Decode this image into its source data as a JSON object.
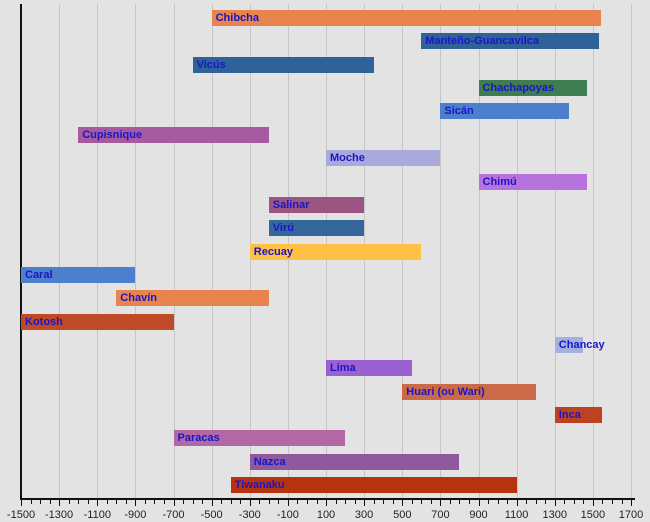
{
  "chart_data": {
    "type": "bar",
    "variant": "horizontal-timeline",
    "title": "",
    "xlabel": "",
    "ylabel": "",
    "legend": "none",
    "grid": "vertical-major",
    "x_axis": {
      "min": -1500,
      "max": 1700,
      "major_tick_step": 200,
      "minor_tick_step": 50,
      "tick_labels": [
        "-1500",
        "-1300",
        "-1100",
        "-900",
        "-700",
        "-500",
        "-300",
        "-100",
        "100",
        "300",
        "500",
        "700",
        "900",
        "1100",
        "1300",
        "1500",
        "1700"
      ]
    },
    "series": [
      {
        "name": "Chibcha",
        "start": -500,
        "end": 1541,
        "color": "#E8854E"
      },
      {
        "name": "Manteño-Guancavilca",
        "start": 600,
        "end": 1534,
        "color": "#30629A"
      },
      {
        "name": "Vicús",
        "start": -600,
        "end": 350,
        "color": "#30629A"
      },
      {
        "name": "Chachapoyas",
        "start": 900,
        "end": 1470,
        "color": "#3E7D52"
      },
      {
        "name": "Sicán",
        "start": 700,
        "end": 1375,
        "color": "#4C80CC"
      },
      {
        "name": "Cupisnique",
        "start": -1200,
        "end": -200,
        "color": "#A65AA0"
      },
      {
        "name": "Moche",
        "start": 100,
        "end": 700,
        "color": "#A9A9DC"
      },
      {
        "name": "Chimú",
        "start": 900,
        "end": 1470,
        "color": "#B872DE"
      },
      {
        "name": "Salinar",
        "start": -200,
        "end": 300,
        "color": "#9A5583"
      },
      {
        "name": "Virú",
        "start": -200,
        "end": 300,
        "color": "#34689C"
      },
      {
        "name": "Recuay",
        "start": -300,
        "end": 600,
        "color": "#FFC045"
      },
      {
        "name": "Caral",
        "start": -1500,
        "end": -900,
        "color": "#4C80CC"
      },
      {
        "name": "Chavín",
        "start": -1000,
        "end": -200,
        "color": "#E8854E"
      },
      {
        "name": "Kotosh",
        "start": -1500,
        "end": -700,
        "color": "#BE4A27"
      },
      {
        "name": "Chancay",
        "start": 1300,
        "end": 1450,
        "color": "#A3B0E0"
      },
      {
        "name": "Lima",
        "start": 100,
        "end": 550,
        "color": "#9A62D0"
      },
      {
        "name": "Huari (ou Wari)",
        "start": 500,
        "end": 1200,
        "color": "#CB6A49"
      },
      {
        "name": "Inca",
        "start": 1300,
        "end": 1550,
        "color": "#BC4223"
      },
      {
        "name": "Paracas",
        "start": -700,
        "end": 200,
        "color": "#B168A4"
      },
      {
        "name": "Nazca",
        "start": -300,
        "end": 800,
        "color": "#8E5A9B"
      },
      {
        "name": "Tiwanaku",
        "start": -400,
        "end": 1100,
        "color": "#B5340F"
      }
    ]
  },
  "colors": {
    "background": "#E3E3E3",
    "gridline": "#C6C6C6",
    "axis": "#111111",
    "bar_label_text": "#1A16C8",
    "tick_label_text": "#222222"
  }
}
